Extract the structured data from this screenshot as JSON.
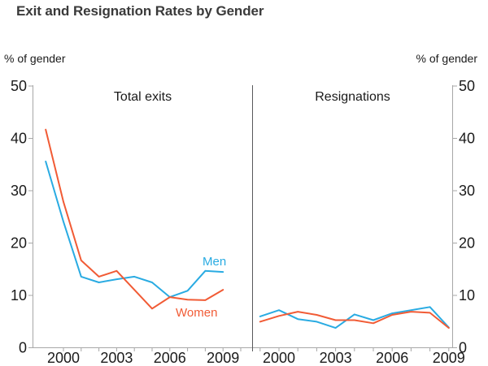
{
  "title": "Exit and Resignation Rates by Gender",
  "y_axis_label_left": "% of gender",
  "y_axis_label_right": "% of gender",
  "colors": {
    "men": "#29abe2",
    "women": "#f15b35",
    "axis": "#a7a7a7",
    "divider": "#58595b",
    "text": "#1a1a1a"
  },
  "chart_data": {
    "type": "line",
    "x": [
      1999,
      2000,
      2001,
      2002,
      2003,
      2004,
      2005,
      2006,
      2007,
      2008,
      2009
    ],
    "ylim": [
      0,
      50
    ],
    "yticks": [
      0,
      10,
      20,
      30,
      40,
      50
    ],
    "xtick_labels": [
      2000,
      2003,
      2006,
      2009
    ],
    "ylabel": "% of gender",
    "grid": false,
    "legend_position": "inline labels on first panel",
    "panels": [
      {
        "title": "Total exits",
        "series": [
          {
            "name": "Men",
            "color_key": "men",
            "values": [
              35.5,
              24.0,
              13.5,
              12.4,
              13.0,
              13.5,
              12.4,
              9.6,
              10.8,
              14.6,
              14.4
            ]
          },
          {
            "name": "Women",
            "color_key": "women",
            "values": [
              41.6,
              27.8,
              16.6,
              13.5,
              14.6,
              11.0,
              7.4,
              9.6,
              9.1,
              9.0,
              11.0
            ]
          }
        ]
      },
      {
        "title": "Resignations",
        "series": [
          {
            "name": "Men",
            "color_key": "men",
            "values": [
              5.9,
              7.1,
              5.4,
              4.9,
              3.7,
              6.3,
              5.2,
              6.5,
              7.1,
              7.7,
              3.8
            ]
          },
          {
            "name": "Women",
            "color_key": "women",
            "values": [
              4.9,
              6.0,
              6.8,
              6.2,
              5.2,
              5.2,
              4.6,
              6.2,
              6.8,
              6.6,
              3.7
            ]
          }
        ]
      }
    ]
  }
}
